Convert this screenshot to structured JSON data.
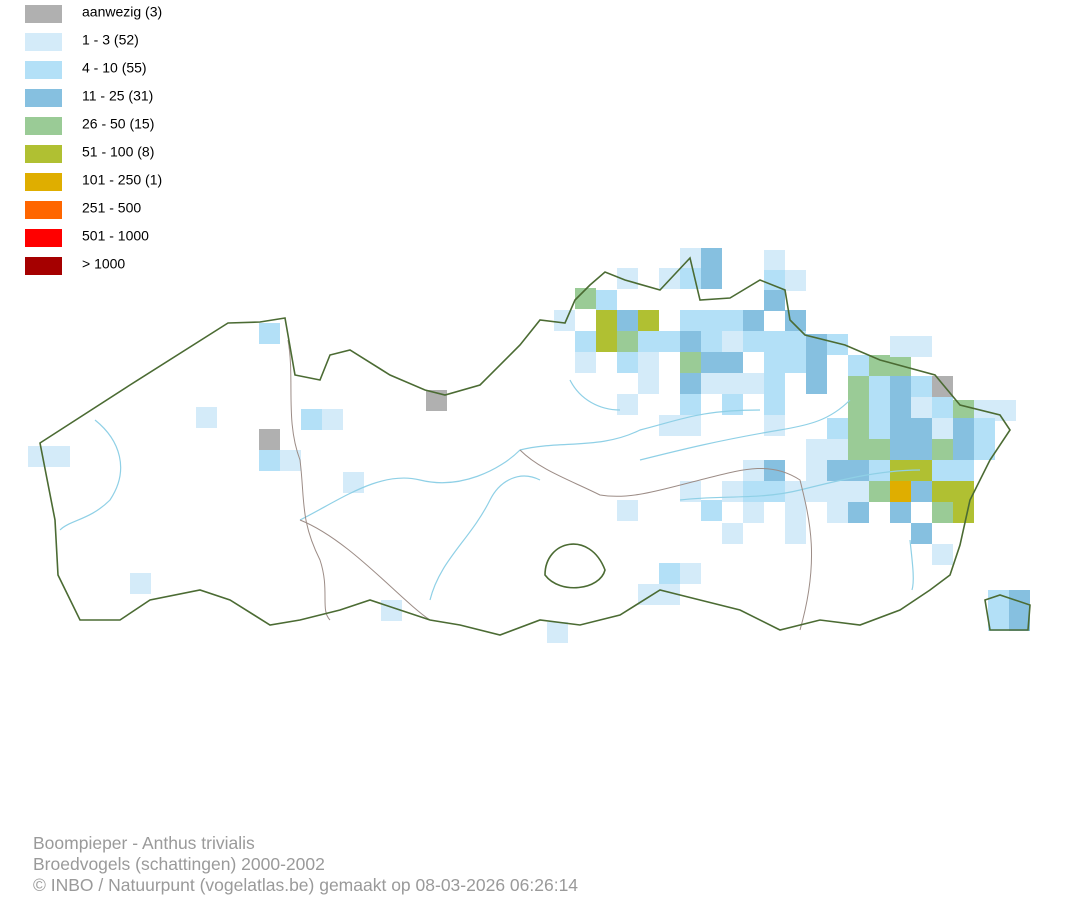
{
  "legend": {
    "items": [
      {
        "label": "aanwezig (3)",
        "color": "#b0b0b0"
      },
      {
        "label": "1 - 3 (52)",
        "color": "#d4ebf9"
      },
      {
        "label": "4 - 10 (55)",
        "color": "#b3e0f7"
      },
      {
        "label": "11 - 25 (31)",
        "color": "#86c0e0"
      },
      {
        "label": "26 - 50 (15)",
        "color": "#9acb96"
      },
      {
        "label": "51 - 100 (8)",
        "color": "#b0c032"
      },
      {
        "label": "101 - 250 (1)",
        "color": "#dfae00"
      },
      {
        "label": "251 - 500",
        "color": "#ff6600"
      },
      {
        "label": "501 - 1000",
        "color": "#ff0000"
      },
      {
        "label": "> 1000",
        "color": "#a50000"
      }
    ]
  },
  "footer": {
    "lines": [
      "Boompieper - Anthus trivialis",
      "Broedvogels (schattingen) 2000-2002",
      "© INBO / Natuurpunt (vogelatlas.be) gemaakt op 08-03-2026 06:26:14"
    ]
  }
}
